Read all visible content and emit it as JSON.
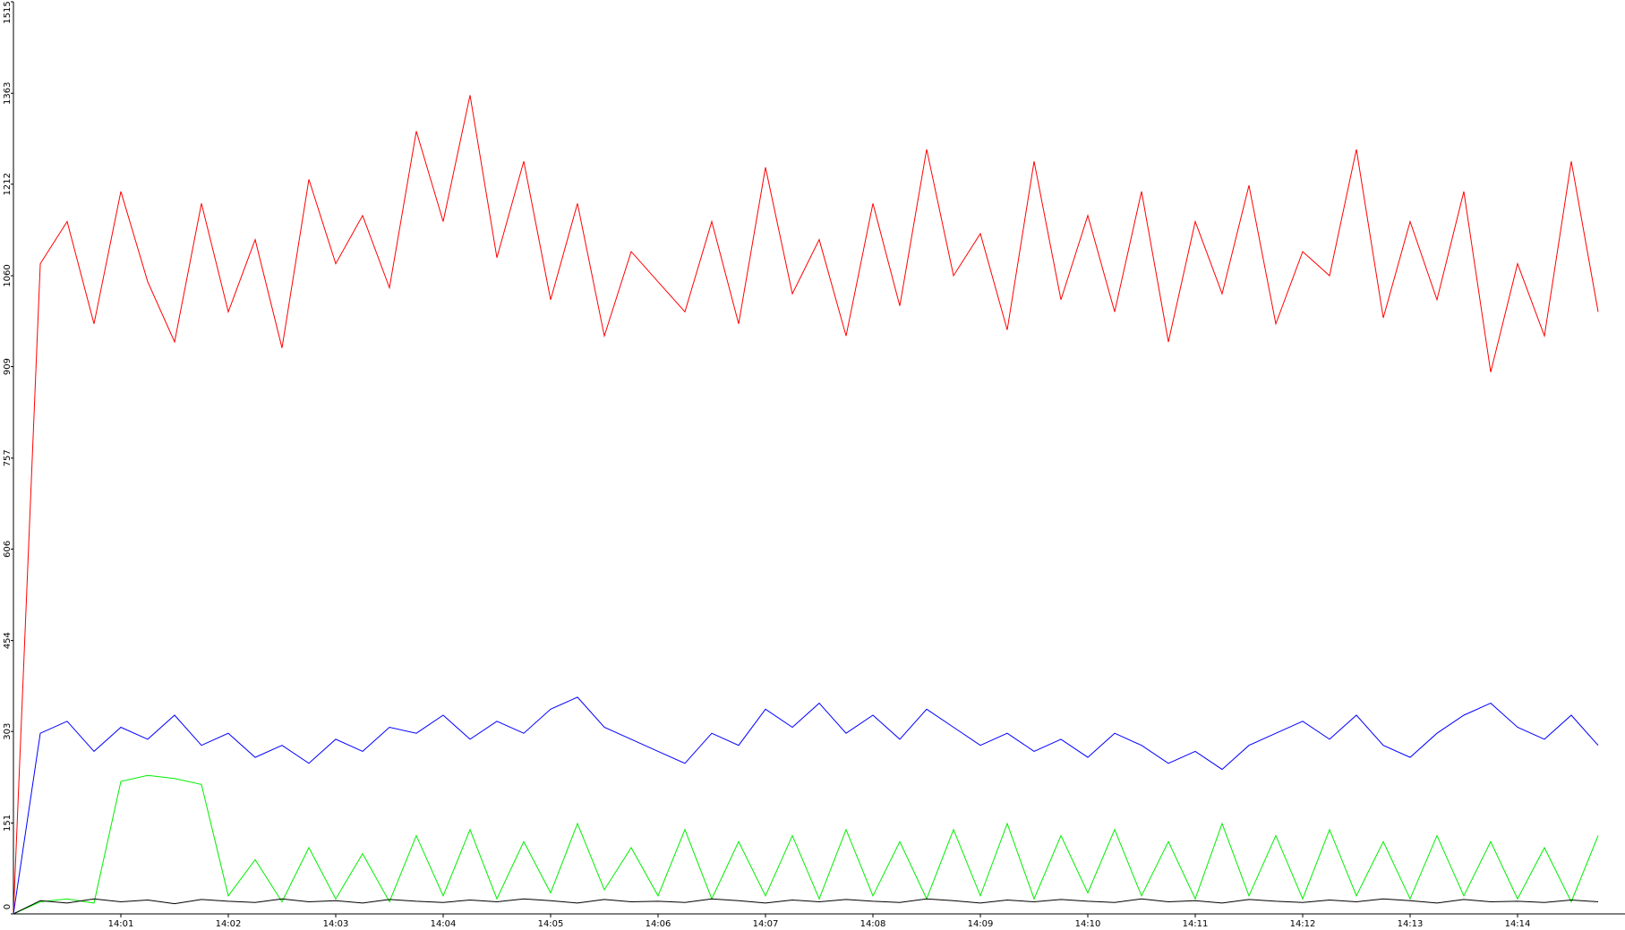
{
  "chart_data": {
    "type": "line",
    "x": [
      840,
      840.25,
      840.5,
      840.75,
      841,
      841.25,
      841.5,
      841.75,
      842,
      842.25,
      842.5,
      842.75,
      843,
      843.25,
      843.5,
      843.75,
      844,
      844.25,
      844.5,
      844.75,
      845,
      845.25,
      845.5,
      845.75,
      846,
      846.25,
      846.5,
      846.75,
      847,
      847.25,
      847.5,
      847.75,
      848,
      848.25,
      848.5,
      848.75,
      849,
      849.25,
      849.5,
      849.75,
      850,
      850.25,
      850.5,
      850.75,
      851,
      851.25,
      851.5,
      851.75,
      852,
      852.25,
      852.5,
      852.75,
      853,
      853.25,
      853.5,
      853.75,
      854,
      854.25,
      854.5,
      854.75
    ],
    "xlim": [
      840,
      855
    ],
    "xticks": [
      {
        "value": 841,
        "label": "14:01"
      },
      {
        "value": 842,
        "label": "14:02"
      },
      {
        "value": 843,
        "label": "14:03"
      },
      {
        "value": 844,
        "label": "14:04"
      },
      {
        "value": 845,
        "label": "14:05"
      },
      {
        "value": 846,
        "label": "14:06"
      },
      {
        "value": 847,
        "label": "14:07"
      },
      {
        "value": 848,
        "label": "14:08"
      },
      {
        "value": 849,
        "label": "14:09"
      },
      {
        "value": 850,
        "label": "14:10"
      },
      {
        "value": 851,
        "label": "14:11"
      },
      {
        "value": 852,
        "label": "14:12"
      },
      {
        "value": 853,
        "label": "14:13"
      },
      {
        "value": 854,
        "label": "14:14"
      }
    ],
    "ylim": [
      0,
      1515
    ],
    "yticks": [
      0,
      151,
      303,
      454,
      606,
      757,
      909,
      1060,
      1212,
      1363,
      1515
    ],
    "series": [
      {
        "color": "#ff0000",
        "values": [
          0,
          1080,
          1150,
          980,
          1200,
          1050,
          950,
          1180,
          1000,
          1120,
          940,
          1220,
          1080,
          1160,
          1040,
          1300,
          1150,
          1360,
          1090,
          1250,
          1020,
          1180,
          960,
          1100,
          1050,
          1000,
          1150,
          980,
          1240,
          1030,
          1120,
          960,
          1180,
          1010,
          1270,
          1060,
          1130,
          970,
          1250,
          1020,
          1160,
          1000,
          1200,
          950,
          1150,
          1030,
          1210,
          980,
          1100,
          1060,
          1270,
          990,
          1150,
          1020,
          1200,
          900,
          1080,
          960,
          1250,
          1000
        ]
      },
      {
        "color": "#0000ff",
        "values": [
          0,
          300,
          320,
          270,
          310,
          290,
          330,
          280,
          300,
          260,
          280,
          250,
          290,
          270,
          310,
          300,
          330,
          290,
          320,
          300,
          340,
          360,
          310,
          290,
          270,
          250,
          300,
          280,
          340,
          310,
          350,
          300,
          330,
          290,
          340,
          310,
          280,
          300,
          270,
          290,
          260,
          300,
          280,
          250,
          270,
          240,
          280,
          300,
          320,
          290,
          330,
          280,
          260,
          300,
          330,
          350,
          310,
          290,
          330,
          280
        ]
      },
      {
        "color": "#00ee00",
        "values": [
          0,
          20,
          25,
          18,
          220,
          230,
          225,
          215,
          30,
          90,
          20,
          110,
          25,
          100,
          20,
          130,
          30,
          140,
          25,
          120,
          35,
          150,
          40,
          110,
          30,
          140,
          25,
          120,
          30,
          130,
          25,
          140,
          30,
          120,
          25,
          140,
          30,
          150,
          25,
          130,
          35,
          140,
          30,
          120,
          25,
          150,
          30,
          130,
          25,
          140,
          30,
          120,
          25,
          130,
          30,
          120,
          25,
          110,
          20,
          130
        ]
      },
      {
        "color": "#000000",
        "values": [
          0,
          22,
          18,
          25,
          20,
          23,
          17,
          24,
          21,
          19,
          25,
          20,
          22,
          18,
          24,
          21,
          19,
          23,
          20,
          25,
          22,
          18,
          24,
          20,
          21,
          19,
          25,
          22,
          18,
          23,
          20,
          24,
          21,
          19,
          25,
          22,
          18,
          23,
          20,
          24,
          21,
          19,
          25,
          20,
          22,
          18,
          24,
          21,
          19,
          23,
          20,
          25,
          22,
          18,
          24,
          20,
          21,
          19,
          23,
          20
        ]
      }
    ]
  }
}
